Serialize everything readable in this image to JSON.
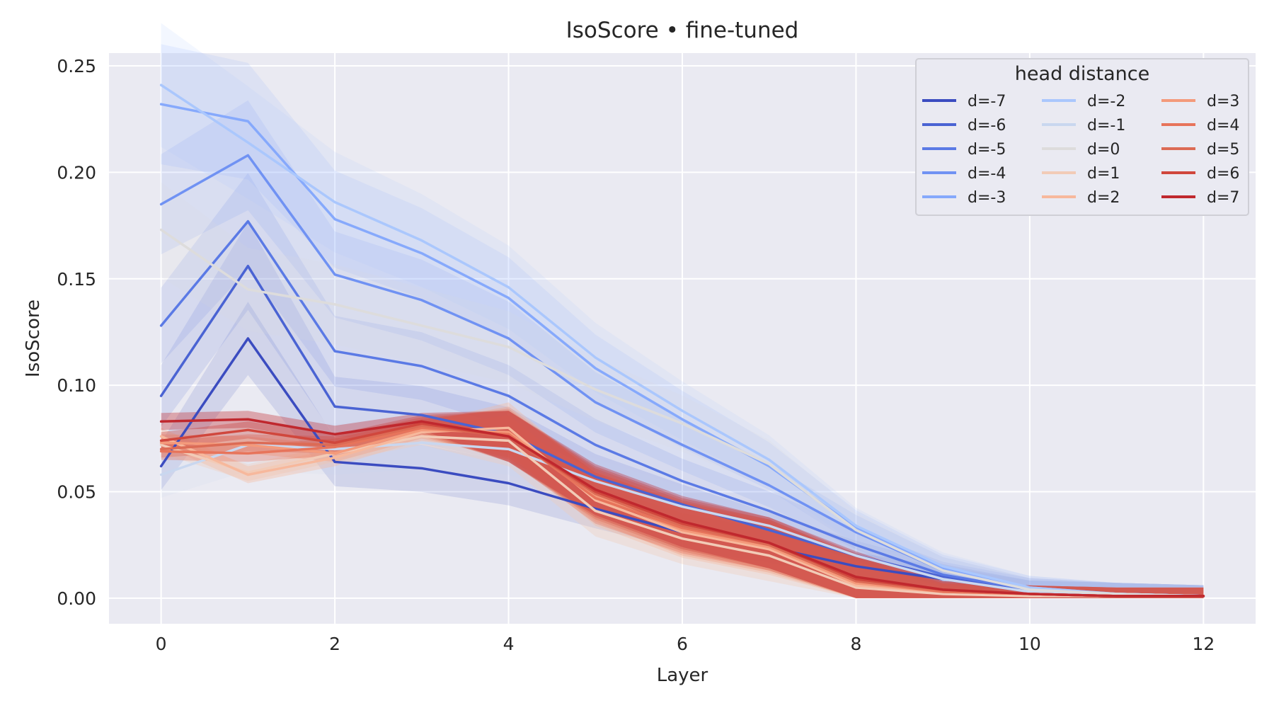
{
  "chart_data": {
    "type": "line",
    "title": "IsoScore • fine-tuned",
    "xlabel": "Layer",
    "ylabel": "IsoScore",
    "xlim": [
      -0.6,
      12.6
    ],
    "ylim": [
      -0.012,
      0.256
    ],
    "xticks": [
      0,
      2,
      4,
      6,
      8,
      10,
      12
    ],
    "yticks": [
      0.0,
      0.05,
      0.1,
      0.15,
      0.2,
      0.25
    ],
    "ytick_labels": [
      "0.00",
      "0.05",
      "0.10",
      "0.15",
      "0.20",
      "0.25"
    ],
    "grid": true,
    "background": "#eaeaf2",
    "legend": {
      "title": "head distance",
      "placement": "top-right",
      "columns": 3
    },
    "x": [
      0,
      1,
      2,
      3,
      4,
      5,
      6,
      7,
      8,
      9,
      10,
      11,
      12
    ],
    "series": [
      {
        "name": "d=-7",
        "color": "#3b4cc0",
        "values": [
          0.062,
          0.122,
          0.064,
          0.061,
          0.054,
          0.042,
          0.031,
          0.024,
          0.015,
          0.009,
          0.003,
          0.002,
          0.001
        ]
      },
      {
        "name": "d=-6",
        "color": "#4a63d3",
        "values": [
          0.095,
          0.156,
          0.09,
          0.086,
          0.077,
          0.057,
          0.044,
          0.032,
          0.02,
          0.01,
          0.003,
          0.002,
          0.001
        ]
      },
      {
        "name": "d=-5",
        "color": "#5b7ae5",
        "values": [
          0.128,
          0.177,
          0.116,
          0.109,
          0.095,
          0.072,
          0.055,
          0.041,
          0.025,
          0.011,
          0.004,
          0.002,
          0.001
        ]
      },
      {
        "name": "d=-4",
        "color": "#7092f3",
        "values": [
          0.185,
          0.208,
          0.152,
          0.14,
          0.122,
          0.092,
          0.072,
          0.053,
          0.031,
          0.013,
          0.004,
          0.002,
          0.001
        ]
      },
      {
        "name": "d=-3",
        "color": "#86a9fc",
        "values": [
          0.232,
          0.224,
          0.178,
          0.162,
          0.141,
          0.108,
          0.084,
          0.062,
          0.033,
          0.014,
          0.005,
          0.002,
          0.001
        ]
      },
      {
        "name": "d=-2",
        "color": "#aac7fd",
        "values": [
          0.241,
          0.214,
          0.186,
          0.168,
          0.146,
          0.113,
          0.088,
          0.065,
          0.034,
          0.015,
          0.005,
          0.002,
          0.001
        ]
      },
      {
        "name": "d=-1",
        "color": "#c9d7ef",
        "values": [
          0.058,
          0.072,
          0.07,
          0.073,
          0.07,
          0.055,
          0.043,
          0.034,
          0.02,
          0.009,
          0.003,
          0.002,
          0.001
        ]
      },
      {
        "name": "d=0",
        "color": "#dddcdc",
        "values": [
          0.173,
          0.145,
          0.138,
          0.128,
          0.118,
          0.098,
          0.082,
          0.063,
          0.032,
          0.013,
          0.004,
          0.002,
          0.001
        ]
      },
      {
        "name": "d=1",
        "color": "#f2cbb7",
        "values": [
          0.072,
          0.059,
          0.068,
          0.076,
          0.074,
          0.041,
          0.028,
          0.02,
          0.005,
          0.002,
          0.001,
          0.001,
          0.001
        ]
      },
      {
        "name": "d=2",
        "color": "#f7b89c",
        "values": [
          0.076,
          0.058,
          0.066,
          0.078,
          0.08,
          0.046,
          0.031,
          0.023,
          0.006,
          0.003,
          0.002,
          0.001,
          0.001
        ]
      },
      {
        "name": "d=3",
        "color": "#f49a7b",
        "values": [
          0.073,
          0.072,
          0.068,
          0.079,
          0.078,
          0.048,
          0.032,
          0.024,
          0.007,
          0.003,
          0.002,
          0.001,
          0.001
        ]
      },
      {
        "name": "d=4",
        "color": "#e7745b",
        "values": [
          0.069,
          0.068,
          0.071,
          0.08,
          0.077,
          0.047,
          0.033,
          0.025,
          0.008,
          0.003,
          0.002,
          0.001,
          0.001
        ]
      },
      {
        "name": "d=5",
        "color": "#dc6b55",
        "values": [
          0.07,
          0.073,
          0.072,
          0.081,
          0.076,
          0.049,
          0.034,
          0.025,
          0.008,
          0.004,
          0.002,
          0.001,
          0.001
        ]
      },
      {
        "name": "d=6",
        "color": "#d0473d",
        "values": [
          0.074,
          0.079,
          0.073,
          0.082,
          0.076,
          0.05,
          0.035,
          0.026,
          0.009,
          0.004,
          0.002,
          0.001,
          0.001
        ]
      },
      {
        "name": "d=7",
        "color": "#c0282e",
        "values": [
          0.083,
          0.084,
          0.077,
          0.083,
          0.076,
          0.051,
          0.036,
          0.026,
          0.01,
          0.004,
          0.002,
          0.001,
          0.001
        ]
      }
    ]
  }
}
